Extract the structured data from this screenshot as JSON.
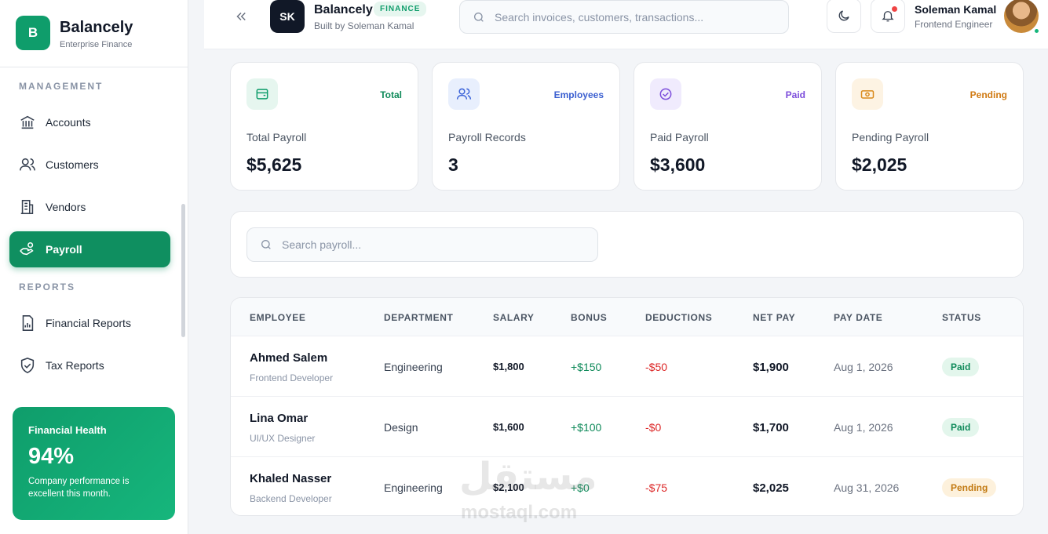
{
  "sidebar": {
    "brand": {
      "logo": "B",
      "name": "Balancely",
      "tagline": "Enterprise Finance"
    },
    "sections": [
      {
        "title": "MANAGEMENT",
        "items": [
          "Accounts",
          "Customers",
          "Vendors",
          "Payroll"
        ]
      },
      {
        "title": "REPORTS",
        "items": [
          "Financial Reports",
          "Tax Reports"
        ]
      }
    ],
    "health": {
      "title": "Financial Health",
      "value": "94%",
      "note": "Company performance is excellent this month."
    }
  },
  "header": {
    "avatar": "SK",
    "name": "Balancely",
    "badge": "FINANCE",
    "subtitle": "Built by Soleman Kamal",
    "search_placeholder": "Search invoices, customers, transactions...",
    "user": {
      "name": "Soleman Kamal",
      "role": "Frontend Engineer"
    }
  },
  "stats": [
    {
      "tag": "Total",
      "label": "Total Payroll",
      "value": "$5,625"
    },
    {
      "tag": "Employees",
      "label": "Payroll Records",
      "value": "3"
    },
    {
      "tag": "Paid",
      "label": "Paid Payroll",
      "value": "$3,600"
    },
    {
      "tag": "Pending",
      "label": "Pending Payroll",
      "value": "$2,025"
    }
  ],
  "filter": {
    "search_placeholder": "Search payroll..."
  },
  "table": {
    "columns": [
      "EMPLOYEE",
      "DEPARTMENT",
      "SALARY",
      "BONUS",
      "DEDUCTIONS",
      "NET PAY",
      "PAY DATE",
      "STATUS"
    ],
    "rows": [
      [
        "Ahmed Salem",
        "Frontend Developer",
        "Engineering",
        "$1,800",
        "+$150",
        "-$50",
        "$1,900",
        "Aug 1, 2026",
        "Paid"
      ],
      [
        "Lina Omar",
        "UI/UX Designer",
        "Design",
        "$1,600",
        "+$100",
        "-$0",
        "$1,700",
        "Aug 1, 2026",
        "Paid"
      ],
      [
        "Khaled Nasser",
        "Backend Developer",
        "Engineering",
        "$2,100",
        "+$0",
        "-$75",
        "$2,025",
        "Aug 31, 2026",
        "Pending"
      ]
    ]
  },
  "watermark": {
    "arabic": "مستقل",
    "latin": "mostaql.com"
  }
}
